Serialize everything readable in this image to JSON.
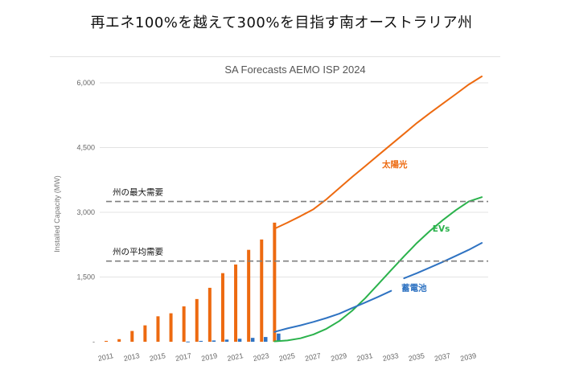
{
  "page": {
    "title": "再エネ100%を越えて300%を目指す南オーストラリア州"
  },
  "chart_data": {
    "type": "bar",
    "title": "SA Forecasts AEMO ISP 2024",
    "xlabel": "",
    "ylabel": "Installed Capacity (MW)",
    "ylim": [
      0,
      6000
    ],
    "yticks": [
      {
        "value": 0,
        "label": "-"
      },
      {
        "value": 1500,
        "label": "1,500"
      },
      {
        "value": 3000,
        "label": "3,000"
      },
      {
        "value": 4500,
        "label": "4,500"
      },
      {
        "value": 6000,
        "label": "6,000"
      }
    ],
    "xlim": [
      2010.5,
      2040.5
    ],
    "xticks": [
      "2011",
      "2013",
      "2015",
      "2017",
      "2019",
      "2021",
      "2023",
      "2025",
      "2027",
      "2029",
      "2031",
      "2033",
      "2035",
      "2037",
      "2039"
    ],
    "grid": true,
    "bar_series": [
      {
        "name": "太陽光",
        "color": "#ED6A10",
        "x": [
          2011,
          2012,
          2013,
          2014,
          2015,
          2016,
          2017,
          2018,
          2019,
          2020,
          2021,
          2022,
          2023,
          2024
        ],
        "values": [
          20,
          60,
          250,
          380,
          590,
          660,
          820,
          990,
          1250,
          1590,
          1790,
          2130,
          2370,
          2760
        ]
      },
      {
        "name": "蓄電池",
        "color": "#2F73C2",
        "x": [
          2017,
          2018,
          2019,
          2020,
          2021,
          2022,
          2023,
          2024
        ],
        "values": [
          5,
          20,
          30,
          50,
          70,
          90,
          110,
          190
        ]
      }
    ],
    "line_series": [
      {
        "name": "太陽光",
        "color": "#ED6A10",
        "points": [
          [
            2024,
            2620
          ],
          [
            2025,
            2760
          ],
          [
            2026,
            2910
          ],
          [
            2027,
            3070
          ],
          [
            2028,
            3300
          ],
          [
            2029,
            3560
          ],
          [
            2030,
            3820
          ],
          [
            2031,
            4070
          ],
          [
            2032,
            4320
          ],
          [
            2033,
            4570
          ],
          [
            2034,
            4820
          ],
          [
            2035,
            5070
          ],
          [
            2036,
            5300
          ],
          [
            2037,
            5520
          ],
          [
            2038,
            5740
          ],
          [
            2039,
            5960
          ],
          [
            2040,
            6150
          ]
        ]
      },
      {
        "name": "EVs",
        "color": "#2BB24C",
        "points": [
          [
            2024,
            10
          ],
          [
            2025,
            30
          ],
          [
            2026,
            80
          ],
          [
            2027,
            170
          ],
          [
            2028,
            300
          ],
          [
            2029,
            480
          ],
          [
            2030,
            720
          ],
          [
            2031,
            1010
          ],
          [
            2032,
            1330
          ],
          [
            2033,
            1660
          ],
          [
            2034,
            1980
          ],
          [
            2035,
            2290
          ],
          [
            2036,
            2570
          ],
          [
            2037,
            2820
          ],
          [
            2038,
            3050
          ],
          [
            2039,
            3250
          ],
          [
            2040,
            3350
          ]
        ]
      },
      {
        "name": "蓄電池",
        "color": "#2F73C2",
        "points": [
          [
            2024,
            230
          ],
          [
            2025,
            310
          ],
          [
            2026,
            380
          ],
          [
            2027,
            460
          ],
          [
            2028,
            550
          ],
          [
            2029,
            650
          ],
          [
            2030,
            780
          ],
          [
            2031,
            910
          ],
          [
            2032,
            1040
          ],
          [
            2033,
            1180
          ]
        ]
      },
      {
        "name": "蓄電池",
        "color": "#2F73C2",
        "points": [
          [
            2034,
            1470
          ],
          [
            2035,
            1590
          ],
          [
            2036,
            1720
          ],
          [
            2037,
            1850
          ],
          [
            2038,
            1990
          ],
          [
            2039,
            2130
          ],
          [
            2040,
            2290
          ]
        ]
      }
    ],
    "reference_lines": [
      {
        "label": "州の最大需要",
        "value": 3250
      },
      {
        "label": "州の平均需要",
        "value": 1870
      }
    ],
    "annotations": [
      {
        "text": "太陽光",
        "color": "#ED6A10",
        "x": 2032.3,
        "y": 4040
      },
      {
        "text": "EVs",
        "color": "#2BB24C",
        "x": 2036.2,
        "y": 2550
      },
      {
        "text": "蓄電池",
        "color": "#2F73C2",
        "x": 2033.8,
        "y": 1180
      }
    ]
  }
}
